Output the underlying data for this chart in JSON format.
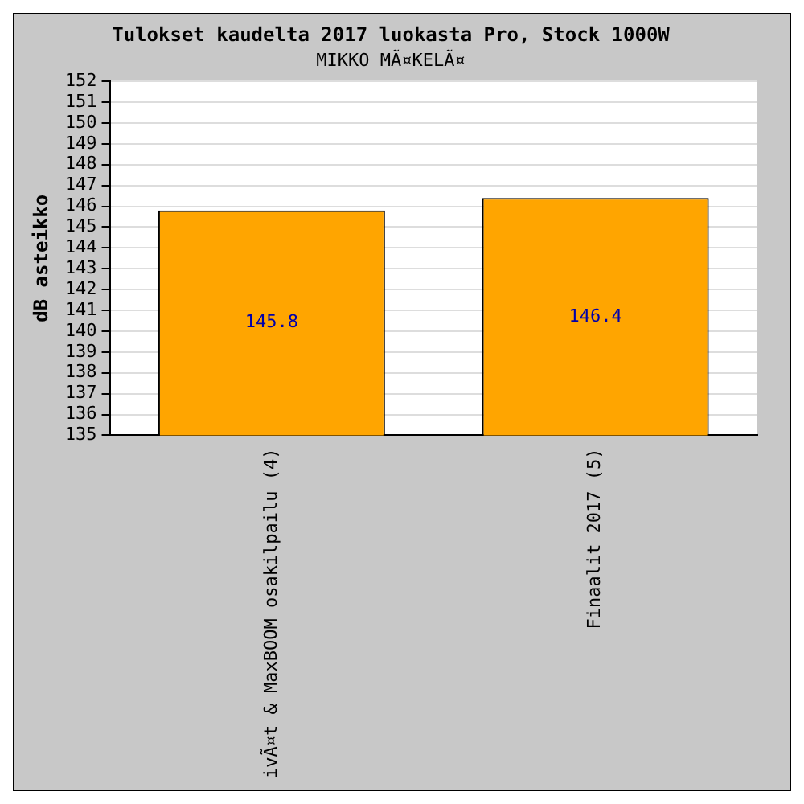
{
  "chart_data": {
    "type": "bar",
    "title": "Tulokset kaudelta 2017 luokasta Pro, Stock 1000W",
    "subtitle": "MIKKO MÃ¤KELÃ¤",
    "ylabel": "dB asteikko",
    "categories": [
      "ivÃ¤t & MaxBOOM osakilpailu (4)",
      "Finaalit 2017 (5)"
    ],
    "values": [
      145.8,
      146.4
    ],
    "color": "#ffa500",
    "ylim": [
      135,
      152
    ],
    "yticks": [
      135,
      136,
      137,
      138,
      139,
      140,
      141,
      142,
      143,
      144,
      145,
      146,
      147,
      148,
      149,
      150,
      151,
      152
    ],
    "grid": "y",
    "data_labels": true,
    "legend": false
  }
}
